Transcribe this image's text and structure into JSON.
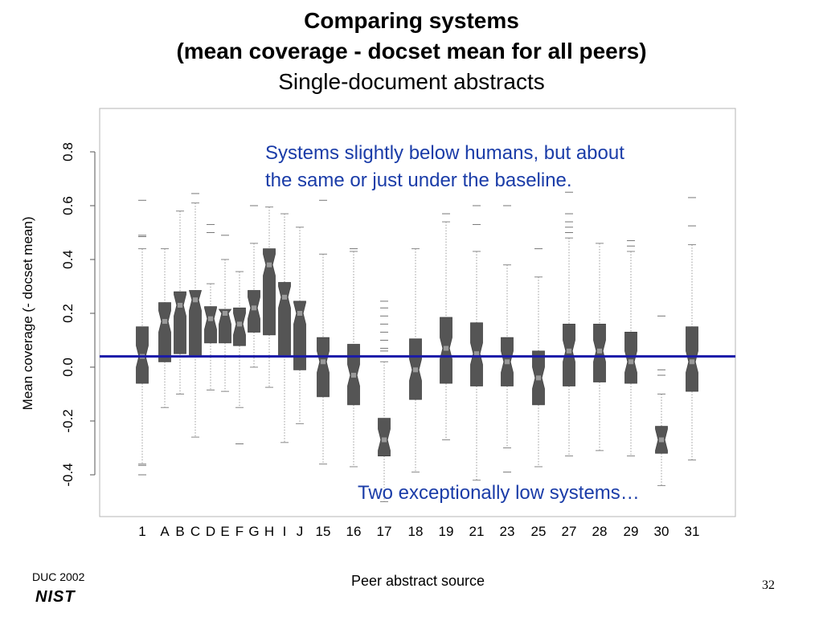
{
  "slide": {
    "title_line1": "Comparing systems",
    "title_line2": "(mean coverage - docset mean for all peers)",
    "title_line3": "Single-document abstracts",
    "footer_left": "DUC 2002",
    "logo_text": "NIST",
    "page_number": "32"
  },
  "colors": {
    "box": "#555555",
    "median_band": "#999999",
    "baseline": "#1a1aa8",
    "annotation": "#1a3ca8"
  },
  "chart_data": {
    "type": "boxplot",
    "ylabel": "Mean coverage (- docset mean)",
    "xlabel": "Peer abstract source",
    "ylim": [
      -0.5,
      0.95
    ],
    "yticks": [
      "-0.4",
      "-0.2",
      "0.0",
      "0.2",
      "0.4",
      "0.6",
      "0.8"
    ],
    "baseline_value": 0.04,
    "annotations": [
      "Systems slightly below humans, but about",
      "the same or just under the baseline.",
      "Two exceptionally low systems…"
    ],
    "categories": [
      "1",
      "A",
      "B",
      "C",
      "D",
      "E",
      "F",
      "G",
      "H",
      "I",
      "J",
      "15",
      "16",
      "17",
      "18",
      "19",
      "21",
      "23",
      "25",
      "27",
      "28",
      "29",
      "30",
      "31"
    ],
    "boxes": [
      {
        "label": "1",
        "lw": -0.36,
        "q1": -0.06,
        "med": 0.04,
        "q3": 0.15,
        "uw": 0.44,
        "out": [
          0.49,
          0.485,
          0.62,
          -0.4,
          -0.365
        ]
      },
      {
        "label": "A",
        "lw": -0.15,
        "q1": 0.02,
        "med": 0.17,
        "q3": 0.24,
        "uw": 0.44,
        "out": []
      },
      {
        "label": "B",
        "lw": -0.1,
        "q1": 0.05,
        "med": 0.23,
        "q3": 0.28,
        "uw": 0.58,
        "out": []
      },
      {
        "label": "C",
        "lw": -0.26,
        "q1": 0.04,
        "med": 0.25,
        "q3": 0.285,
        "uw": 0.61,
        "out": [
          0.645
        ]
      },
      {
        "label": "D",
        "lw": -0.085,
        "q1": 0.09,
        "med": 0.18,
        "q3": 0.225,
        "uw": 0.31,
        "out": [
          0.53,
          0.5
        ]
      },
      {
        "label": "E",
        "lw": -0.09,
        "q1": 0.09,
        "med": 0.2,
        "q3": 0.215,
        "uw": 0.4,
        "out": [
          0.49
        ]
      },
      {
        "label": "F",
        "lw": -0.15,
        "q1": 0.08,
        "med": 0.16,
        "q3": 0.22,
        "uw": 0.355,
        "out": [
          -0.285
        ]
      },
      {
        "label": "G",
        "lw": 0.0,
        "q1": 0.13,
        "med": 0.22,
        "q3": 0.285,
        "uw": 0.46,
        "out": [
          0.6
        ]
      },
      {
        "label": "H",
        "lw": -0.075,
        "q1": 0.12,
        "med": 0.38,
        "q3": 0.44,
        "uw": 0.595,
        "out": []
      },
      {
        "label": "I",
        "lw": -0.28,
        "q1": 0.04,
        "med": 0.26,
        "q3": 0.315,
        "uw": 0.57,
        "out": []
      },
      {
        "label": "J",
        "lw": -0.21,
        "q1": -0.01,
        "med": 0.2,
        "q3": 0.245,
        "uw": 0.52,
        "out": []
      },
      {
        "label": "15",
        "lw": -0.36,
        "q1": -0.11,
        "med": 0.02,
        "q3": 0.11,
        "uw": 0.42,
        "out": [
          0.62
        ]
      },
      {
        "label": "16",
        "lw": -0.37,
        "q1": -0.14,
        "med": -0.03,
        "q3": 0.085,
        "uw": 0.43,
        "out": [
          0.44
        ]
      },
      {
        "label": "17",
        "lw": -0.5,
        "q1": -0.33,
        "med": -0.27,
        "q3": -0.19,
        "uw": 0.02,
        "out": [
          0.06,
          0.07,
          0.1,
          0.13,
          0.16,
          0.19,
          0.22,
          0.245
        ]
      },
      {
        "label": "18",
        "lw": -0.39,
        "q1": -0.12,
        "med": -0.01,
        "q3": 0.105,
        "uw": 0.44,
        "out": []
      },
      {
        "label": "19",
        "lw": -0.27,
        "q1": -0.06,
        "med": 0.07,
        "q3": 0.185,
        "uw": 0.54,
        "out": [
          0.57
        ]
      },
      {
        "label": "21",
        "lw": -0.42,
        "q1": -0.07,
        "med": 0.05,
        "q3": 0.165,
        "uw": 0.43,
        "out": [
          0.53,
          0.6
        ]
      },
      {
        "label": "23",
        "lw": -0.3,
        "q1": -0.07,
        "med": 0.02,
        "q3": 0.11,
        "uw": 0.38,
        "out": [
          0.6,
          -0.39
        ]
      },
      {
        "label": "25",
        "lw": -0.37,
        "q1": -0.14,
        "med": -0.04,
        "q3": 0.06,
        "uw": 0.335,
        "out": [
          0.44
        ]
      },
      {
        "label": "27",
        "lw": -0.33,
        "q1": -0.07,
        "med": 0.06,
        "q3": 0.16,
        "uw": 0.48,
        "out": [
          0.5,
          0.52,
          0.54,
          0.57,
          0.65
        ]
      },
      {
        "label": "28",
        "lw": -0.31,
        "q1": -0.055,
        "med": 0.06,
        "q3": 0.16,
        "uw": 0.46,
        "out": []
      },
      {
        "label": "29",
        "lw": -0.33,
        "q1": -0.06,
        "med": 0.02,
        "q3": 0.13,
        "uw": 0.43,
        "out": [
          0.45,
          0.47
        ]
      },
      {
        "label": "30",
        "lw": -0.44,
        "q1": -0.32,
        "med": -0.27,
        "q3": -0.22,
        "uw": -0.1,
        "out": [
          -0.01,
          -0.03,
          0.19
        ]
      },
      {
        "label": "31",
        "lw": -0.345,
        "q1": -0.09,
        "med": 0.02,
        "q3": 0.15,
        "uw": 0.455,
        "out": [
          0.525,
          0.63
        ]
      }
    ]
  }
}
